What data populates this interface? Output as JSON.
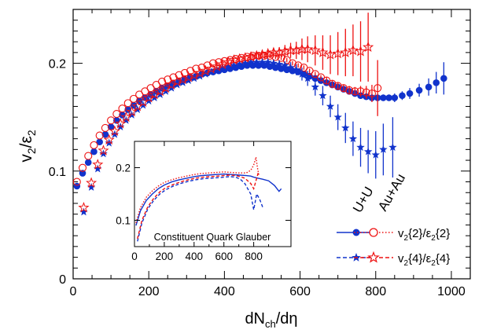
{
  "chart_data": {
    "type": "scatter",
    "xlabel_main": "dN",
    "xlabel_sub": "ch",
    "xlabel_tail": "/dη",
    "ylabel_main": "v",
    "ylabel_sub": "2",
    "ylabel_slash": "/ε",
    "ylabel_sub2": "2",
    "xlim": [
      0,
      1050
    ],
    "ylim": [
      0,
      0.25
    ],
    "xticks": [
      0,
      200,
      400,
      600,
      800,
      1000
    ],
    "xtick_labels": [
      "0",
      "200",
      "400",
      "600",
      "800",
      "1000"
    ],
    "yticks": [
      0,
      0.1,
      0.2
    ],
    "ytick_labels": [
      "0",
      "0.1",
      "0.2"
    ],
    "colors": {
      "red": "#ee1111",
      "blue": "#1133cc"
    },
    "system_labels": [
      "U+U",
      "Au+Au"
    ],
    "legend": [
      {
        "v": "v",
        "vsub": "2",
        "order": "{2}",
        "slash": "/ε",
        "esub": "2",
        "order2": "{2}"
      },
      {
        "v": "v",
        "vsub": "2",
        "order": "{4}",
        "slash": "/ε",
        "esub": "2",
        "order2": "{4}"
      }
    ],
    "series": [
      {
        "system": "U+U",
        "marker": "filled-circle",
        "color": "blue",
        "x": [
          10,
          25,
          40,
          55,
          70,
          85,
          100,
          115,
          130,
          145,
          160,
          175,
          190,
          205,
          220,
          235,
          250,
          265,
          280,
          295,
          310,
          325,
          340,
          355,
          370,
          385,
          400,
          415,
          430,
          445,
          460,
          475,
          490,
          505,
          520,
          535,
          550,
          565,
          580,
          595,
          610,
          625,
          640,
          655,
          670,
          685,
          700,
          715,
          730,
          745,
          760,
          775,
          790,
          805,
          820,
          835,
          850,
          870,
          890,
          915,
          940,
          960,
          980
        ],
        "y": [
          0.086,
          0.098,
          0.108,
          0.118,
          0.127,
          0.134,
          0.141,
          0.147,
          0.152,
          0.157,
          0.161,
          0.165,
          0.168,
          0.171,
          0.174,
          0.177,
          0.179,
          0.181,
          0.183,
          0.185,
          0.187,
          0.188,
          0.19,
          0.191,
          0.192,
          0.193,
          0.194,
          0.195,
          0.196,
          0.197,
          0.198,
          0.198,
          0.198,
          0.198,
          0.197,
          0.196,
          0.195,
          0.194,
          0.193,
          0.192,
          0.19,
          0.188,
          0.186,
          0.184,
          0.182,
          0.18,
          0.178,
          0.176,
          0.174,
          0.172,
          0.17,
          0.169,
          0.168,
          0.168,
          0.168,
          0.168,
          0.168,
          0.17,
          0.172,
          0.175,
          0.178,
          0.182,
          0.186
        ],
        "err": [
          0.001,
          0.001,
          0.001,
          0.001,
          0.001,
          0.001,
          0.001,
          0.001,
          0.001,
          0.001,
          0.001,
          0.001,
          0.001,
          0.001,
          0.001,
          0.001,
          0.001,
          0.001,
          0.001,
          0.001,
          0.001,
          0.001,
          0.001,
          0.001,
          0.001,
          0.001,
          0.001,
          0.001,
          0.001,
          0.001,
          0.001,
          0.001,
          0.001,
          0.001,
          0.002,
          0.002,
          0.002,
          0.002,
          0.002,
          0.002,
          0.002,
          0.002,
          0.002,
          0.002,
          0.002,
          0.002,
          0.002,
          0.002,
          0.002,
          0.002,
          0.003,
          0.003,
          0.003,
          0.003,
          0.003,
          0.003,
          0.004,
          0.004,
          0.005,
          0.006,
          0.008,
          0.01,
          0.015
        ]
      },
      {
        "system": "Au+Au",
        "marker": "open-circle",
        "color": "red",
        "x": [
          10,
          25,
          40,
          55,
          70,
          85,
          100,
          115,
          130,
          145,
          160,
          175,
          190,
          205,
          220,
          235,
          250,
          265,
          280,
          295,
          310,
          325,
          340,
          355,
          370,
          385,
          400,
          415,
          430,
          445,
          460,
          475,
          490,
          505,
          520,
          535,
          550,
          565,
          580,
          595,
          610,
          625,
          640,
          655,
          670,
          685,
          700,
          715,
          730,
          745,
          760,
          775,
          790,
          805
        ],
        "y": [
          0.09,
          0.103,
          0.114,
          0.124,
          0.133,
          0.14,
          0.147,
          0.153,
          0.158,
          0.163,
          0.167,
          0.171,
          0.174,
          0.177,
          0.18,
          0.183,
          0.185,
          0.187,
          0.189,
          0.191,
          0.193,
          0.195,
          0.196,
          0.198,
          0.2,
          0.201,
          0.202,
          0.203,
          0.204,
          0.205,
          0.206,
          0.207,
          0.207,
          0.207,
          0.207,
          0.206,
          0.205,
          0.203,
          0.2,
          0.198,
          0.196,
          0.193,
          0.19,
          0.187,
          0.184,
          0.181,
          0.179,
          0.177,
          0.175,
          0.174,
          0.174,
          0.173,
          0.172,
          0.177
        ],
        "err": [
          0.001,
          0.001,
          0.001,
          0.001,
          0.001,
          0.001,
          0.001,
          0.001,
          0.001,
          0.001,
          0.001,
          0.001,
          0.001,
          0.001,
          0.001,
          0.001,
          0.001,
          0.001,
          0.001,
          0.001,
          0.001,
          0.001,
          0.001,
          0.001,
          0.001,
          0.001,
          0.001,
          0.001,
          0.001,
          0.001,
          0.001,
          0.002,
          0.002,
          0.002,
          0.002,
          0.002,
          0.002,
          0.002,
          0.002,
          0.002,
          0.002,
          0.002,
          0.002,
          0.002,
          0.003,
          0.003,
          0.003,
          0.003,
          0.004,
          0.004,
          0.005,
          0.006,
          0.008,
          0.026
        ]
      },
      {
        "system": "U+U",
        "marker": "filled-star",
        "color": "blue",
        "x": [
          28,
          48,
          65,
          80,
          95,
          110,
          125,
          140,
          155,
          170,
          185,
          200,
          215,
          230,
          245,
          260,
          275,
          290,
          305,
          320,
          335,
          350,
          365,
          380,
          395,
          410,
          425,
          440,
          455,
          470,
          485,
          500,
          515,
          530,
          545,
          560,
          575,
          590,
          605,
          620,
          640,
          660,
          680,
          700,
          720,
          740,
          760,
          780,
          800,
          820,
          845
        ],
        "y": [
          0.062,
          0.085,
          0.102,
          0.116,
          0.126,
          0.134,
          0.141,
          0.147,
          0.152,
          0.157,
          0.161,
          0.165,
          0.168,
          0.171,
          0.174,
          0.177,
          0.18,
          0.182,
          0.184,
          0.186,
          0.188,
          0.19,
          0.192,
          0.194,
          0.196,
          0.197,
          0.198,
          0.199,
          0.2,
          0.201,
          0.201,
          0.201,
          0.201,
          0.2,
          0.199,
          0.198,
          0.196,
          0.194,
          0.19,
          0.186,
          0.178,
          0.17,
          0.16,
          0.15,
          0.14,
          0.13,
          0.122,
          0.118,
          0.115,
          0.12,
          0.122
        ],
        "err": [
          0.001,
          0.001,
          0.001,
          0.001,
          0.001,
          0.001,
          0.001,
          0.001,
          0.001,
          0.001,
          0.001,
          0.001,
          0.001,
          0.001,
          0.001,
          0.001,
          0.001,
          0.001,
          0.001,
          0.001,
          0.001,
          0.001,
          0.001,
          0.001,
          0.002,
          0.002,
          0.002,
          0.002,
          0.002,
          0.002,
          0.003,
          0.003,
          0.003,
          0.003,
          0.004,
          0.004,
          0.005,
          0.005,
          0.006,
          0.007,
          0.008,
          0.009,
          0.01,
          0.012,
          0.014,
          0.016,
          0.018,
          0.02,
          0.022,
          0.024,
          0.028
        ]
      },
      {
        "system": "Au+Au",
        "marker": "open-star",
        "color": "red",
        "x": [
          28,
          48,
          65,
          80,
          95,
          110,
          125,
          140,
          155,
          170,
          185,
          200,
          215,
          230,
          245,
          260,
          275,
          290,
          305,
          320,
          335,
          350,
          365,
          380,
          395,
          410,
          425,
          440,
          455,
          470,
          485,
          500,
          515,
          530,
          545,
          560,
          575,
          590,
          605,
          620,
          640,
          660,
          680,
          700,
          720,
          740,
          760,
          780
        ],
        "y": [
          0.066,
          0.089,
          0.106,
          0.119,
          0.129,
          0.137,
          0.144,
          0.15,
          0.155,
          0.16,
          0.164,
          0.168,
          0.171,
          0.174,
          0.177,
          0.18,
          0.183,
          0.185,
          0.187,
          0.189,
          0.191,
          0.193,
          0.195,
          0.197,
          0.199,
          0.201,
          0.203,
          0.204,
          0.205,
          0.206,
          0.207,
          0.208,
          0.209,
          0.21,
          0.21,
          0.211,
          0.212,
          0.212,
          0.213,
          0.213,
          0.212,
          0.21,
          0.208,
          0.209,
          0.21,
          0.212,
          0.211,
          0.215
        ],
        "err": [
          0.001,
          0.001,
          0.001,
          0.001,
          0.001,
          0.001,
          0.001,
          0.001,
          0.001,
          0.001,
          0.001,
          0.001,
          0.001,
          0.001,
          0.001,
          0.001,
          0.001,
          0.001,
          0.001,
          0.001,
          0.001,
          0.001,
          0.001,
          0.002,
          0.002,
          0.002,
          0.002,
          0.002,
          0.002,
          0.003,
          0.003,
          0.003,
          0.004,
          0.004,
          0.005,
          0.006,
          0.007,
          0.008,
          0.01,
          0.012,
          0.014,
          0.016,
          0.018,
          0.02,
          0.022,
          0.024,
          0.028,
          0.032
        ]
      }
    ],
    "inset": {
      "title": "Constituent Quark Glauber",
      "xlim": [
        0,
        1050
      ],
      "ylim": [
        0.05,
        0.25
      ],
      "xticks": [
        0,
        200,
        400,
        600,
        800
      ],
      "xtick_labels": [
        "0",
        "200",
        "400",
        "600",
        "800"
      ],
      "yticks": [
        0.1,
        0.2
      ],
      "ytick_labels": [
        "0.1",
        "0.2"
      ],
      "curves": [
        {
          "label": "v2{2}/ε2{2} U+U",
          "color": "blue",
          "style": "solid",
          "x": [
            10,
            40,
            80,
            120,
            160,
            200,
            250,
            300,
            350,
            400,
            450,
            500,
            550,
            600,
            650,
            700,
            750,
            780,
            800,
            830,
            860,
            900,
            940,
            970,
            985
          ],
          "y": [
            0.09,
            0.118,
            0.138,
            0.15,
            0.16,
            0.167,
            0.173,
            0.177,
            0.18,
            0.183,
            0.185,
            0.186,
            0.187,
            0.188,
            0.187,
            0.186,
            0.185,
            0.184,
            0.182,
            0.18,
            0.178,
            0.175,
            0.166,
            0.155,
            0.16
          ]
        },
        {
          "label": "v2{2}/ε2{2} Au+Au",
          "color": "red",
          "style": "dotted",
          "x": [
            10,
            40,
            80,
            120,
            160,
            200,
            250,
            300,
            350,
            400,
            450,
            500,
            550,
            600,
            650,
            700,
            750,
            780,
            800,
            815,
            825,
            835
          ],
          "y": [
            0.095,
            0.124,
            0.144,
            0.156,
            0.165,
            0.172,
            0.177,
            0.181,
            0.184,
            0.187,
            0.189,
            0.19,
            0.191,
            0.192,
            0.191,
            0.19,
            0.19,
            0.195,
            0.205,
            0.22,
            0.2,
            0.185
          ]
        },
        {
          "label": "v2{4}/ε2{4} U+U",
          "color": "blue",
          "style": "dashed",
          "x": [
            20,
            50,
            90,
            130,
            170,
            210,
            260,
            310,
            360,
            410,
            460,
            510,
            560,
            600,
            640,
            680,
            710,
            740,
            760,
            780,
            800,
            820,
            840,
            860
          ],
          "y": [
            0.06,
            0.095,
            0.122,
            0.138,
            0.15,
            0.158,
            0.165,
            0.17,
            0.174,
            0.177,
            0.179,
            0.18,
            0.181,
            0.182,
            0.183,
            0.182,
            0.178,
            0.17,
            0.16,
            0.15,
            0.12,
            0.15,
            0.14,
            0.125
          ]
        },
        {
          "label": "v2{4}/ε2{4} Au+Au",
          "color": "red",
          "style": "dashed",
          "x": [
            20,
            50,
            90,
            130,
            170,
            210,
            260,
            310,
            360,
            410,
            460,
            510,
            560,
            600,
            640,
            680,
            710,
            740,
            760,
            780,
            800,
            815,
            830
          ],
          "y": [
            0.065,
            0.1,
            0.126,
            0.142,
            0.154,
            0.162,
            0.168,
            0.173,
            0.177,
            0.18,
            0.182,
            0.183,
            0.184,
            0.185,
            0.186,
            0.185,
            0.183,
            0.18,
            0.175,
            0.17,
            0.16,
            0.175,
            0.19
          ]
        }
      ]
    }
  }
}
